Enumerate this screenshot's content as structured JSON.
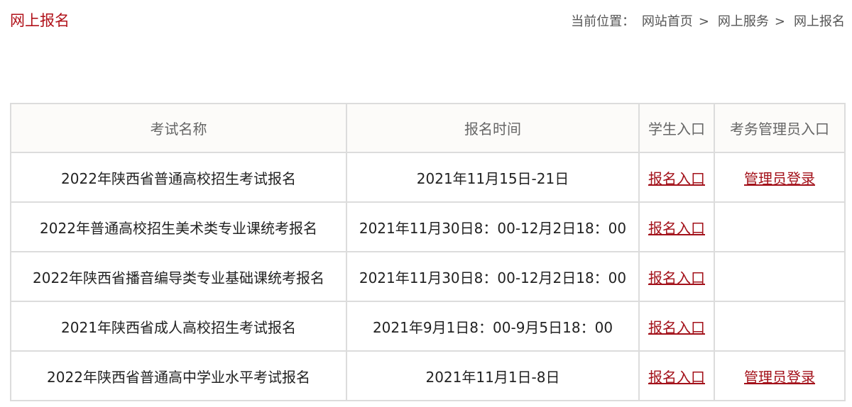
{
  "page_title": "网上报名",
  "breadcrumb": {
    "label": "当前位置：",
    "items": [
      "网站首页",
      "网上服务",
      "网上报名"
    ],
    "separator": ">"
  },
  "table": {
    "headers": [
      "考试名称",
      "报名时间",
      "学生入口",
      "考务管理员入口"
    ],
    "rows": [
      {
        "name": "2022年陕西省普通高校招生考试报名",
        "time": "2021年11月15日-21日",
        "student": "报名入口",
        "admin": "管理员登录"
      },
      {
        "name": "2022年普通高校招生美术类专业课统考报名",
        "time": "2021年11月30日8：00-12月2日18：00",
        "student": "报名入口",
        "admin": ""
      },
      {
        "name": "2022年陕西省播音编导类专业基础课统考报名",
        "time": "2021年11月30日8：00-12月2日18：00",
        "student": "报名入口",
        "admin": ""
      },
      {
        "name": "2021年陕西省成人高校招生考试报名",
        "time": "2021年9月1日8：00-9月5日18：00",
        "student": "报名入口",
        "admin": ""
      },
      {
        "name": "2022年陕西省普通高中学业水平考试报名",
        "time": "2021年11月1日-8日",
        "student": "报名入口",
        "admin": "管理员登录"
      }
    ]
  },
  "colors": {
    "accent": "#b1121a",
    "link": "#a3111a"
  }
}
